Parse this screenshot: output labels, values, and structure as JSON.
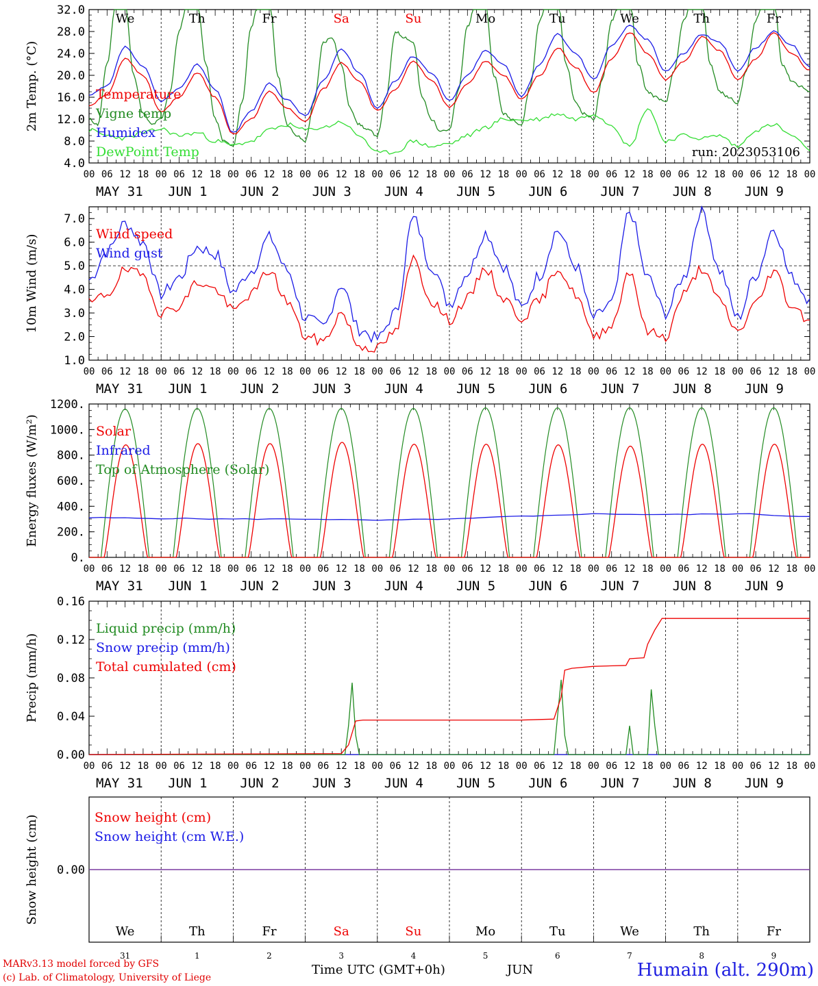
{
  "colors": {
    "red": "#ee0000",
    "green": "#228b22",
    "blue": "#1a1ae6",
    "lime": "#33dd33",
    "purple": "#7a3aa0",
    "weekend": "#ee0000"
  },
  "axis": {
    "hour_ticks": [
      "00",
      "06",
      "12",
      "18"
    ],
    "date_labels": [
      "MAY 31",
      "JUN  1",
      "JUN  2",
      "JUN  3",
      "JUN  4",
      "JUN  5",
      "JUN  6",
      "JUN  7",
      "JUN  8",
      "JUN  9"
    ],
    "weekdays": [
      "We",
      "Th",
      "Fr",
      "Sa",
      "Su",
      "Mo",
      "Tu",
      "We",
      "Th",
      "Fr"
    ],
    "weekend_index": [
      3,
      4
    ],
    "day_numbers": [
      "31",
      "1",
      "2",
      "3",
      "4",
      "5",
      "6",
      "7",
      "8",
      "9"
    ],
    "month_label": "JUN",
    "time_label": "Time UTC (GMT+0h)"
  },
  "footer": {
    "model": "MARv3.13 model forced by GFS",
    "credit": "(c) Lab. of Climatology, University of Liege",
    "station": "Humain (alt. 290m)"
  },
  "chart_data": [
    {
      "type": "line",
      "ylabel": "2m Temp. (°C)",
      "ylim": [
        4,
        32
      ],
      "yticks": [
        "4.0",
        "8.0",
        "12.0",
        "16.0",
        "20.0",
        "24.0",
        "28.0",
        "32.0"
      ],
      "annotation": "run: 2023053106",
      "series": [
        {
          "name": "Temperature",
          "color": "red",
          "x": [
            0,
            0.25,
            0.5,
            0.75,
            1,
            1.25,
            1.5,
            1.75,
            2,
            2.25,
            2.5,
            2.75,
            3,
            3.25,
            3.5,
            3.75,
            4,
            4.25,
            4.5,
            4.75,
            5,
            5.25,
            5.5,
            5.75,
            6,
            6.25,
            6.5,
            6.75,
            7,
            7.25,
            7.5,
            7.75,
            8,
            8.25,
            8.5,
            8.75,
            9,
            9.25,
            9.5,
            9.75,
            10
          ],
          "values": [
            14.5,
            16.5,
            23,
            20,
            13.3,
            16,
            20.5,
            16,
            9.2,
            12,
            17,
            14,
            11.5,
            17.5,
            22.3,
            19,
            13.5,
            17.5,
            22.5,
            19,
            14.2,
            18.5,
            22.5,
            20,
            15.6,
            20,
            25,
            21.5,
            16.8,
            23,
            27.8,
            24,
            19.2,
            22.5,
            27,
            24.5,
            19.2,
            23,
            27.8,
            24,
            21
          ]
        },
        {
          "name": "Vigne temp",
          "color": "green",
          "x": [
            0,
            0.12,
            0.25,
            0.37,
            0.5,
            0.62,
            0.75,
            0.87,
            1,
            1.12,
            1.25,
            1.37,
            1.5,
            1.62,
            1.75,
            1.87,
            2,
            2.12,
            2.25,
            2.37,
            2.5,
            2.62,
            2.75,
            2.87,
            3,
            3.12,
            3.25,
            3.37,
            3.5,
            3.62,
            3.75,
            3.87,
            4,
            4.12,
            4.25,
            4.37,
            4.5,
            4.62,
            4.75,
            4.87,
            5,
            5.12,
            5.25,
            5.37,
            5.5,
            5.62,
            5.75,
            5.87,
            6,
            6.12,
            6.25,
            6.37,
            6.5,
            6.62,
            6.75,
            6.87,
            7,
            7.12,
            7.25,
            7.37,
            7.5,
            7.62,
            7.75,
            7.87,
            8,
            8.12,
            8.25,
            8.37,
            8.5,
            8.62,
            8.75,
            8.87,
            9,
            9.12,
            9.25,
            9.37,
            9.5,
            9.62,
            9.75,
            9.87,
            10
          ],
          "values": [
            12,
            11,
            22,
            33,
            33,
            20,
            13,
            11,
            12,
            17,
            28,
            34,
            34,
            22,
            12,
            8,
            7,
            15,
            29,
            34,
            34,
            20,
            11,
            9,
            8,
            15,
            26,
            27,
            22,
            14,
            11,
            10,
            9,
            16,
            28,
            27,
            26,
            16,
            12,
            10,
            10,
            17,
            29,
            33,
            33,
            20,
            13,
            12,
            11,
            18,
            30,
            34,
            34,
            22,
            15,
            13,
            12,
            19,
            30,
            34,
            34,
            22,
            17,
            16,
            15,
            21,
            30,
            34,
            34,
            22,
            17,
            16,
            15,
            21,
            30,
            34,
            34,
            22,
            19,
            18,
            17
          ]
        },
        {
          "name": "Humidex",
          "color": "blue",
          "x": [
            0,
            0.25,
            0.5,
            0.75,
            1,
            1.25,
            1.5,
            1.75,
            2,
            2.25,
            2.5,
            2.75,
            3,
            3.25,
            3.5,
            3.75,
            4,
            4.25,
            4.5,
            4.75,
            5,
            5.25,
            5.5,
            5.75,
            6,
            6.25,
            6.5,
            6.75,
            7,
            7.25,
            7.5,
            7.75,
            8,
            8.25,
            8.5,
            8.75,
            9,
            9.25,
            9.5,
            9.75,
            10
          ],
          "values": [
            16.3,
            18,
            25.2,
            21.5,
            15.3,
            17.5,
            22,
            17.5,
            9.5,
            13.5,
            18.5,
            15.5,
            12.6,
            19,
            24.8,
            20.5,
            14,
            19,
            23.5,
            20.5,
            15.3,
            20,
            24.5,
            22,
            16.2,
            22,
            27.5,
            24,
            19.3,
            25.5,
            29,
            26.5,
            20.8,
            24,
            27.5,
            26,
            20.8,
            25,
            28,
            25.5,
            21.5
          ]
        },
        {
          "name": "DewPoint Temp",
          "color": "lime",
          "x": [
            0,
            0.25,
            0.5,
            0.75,
            1,
            1.25,
            1.5,
            1.75,
            2,
            2.25,
            2.5,
            2.75,
            3,
            3.25,
            3.5,
            3.75,
            4,
            4.25,
            4.5,
            4.75,
            5,
            5.25,
            5.5,
            5.75,
            6,
            6.25,
            6.5,
            6.75,
            7,
            7.25,
            7.5,
            7.75,
            8,
            8.25,
            8.5,
            8.75,
            9,
            9.25,
            9.5,
            9.75,
            10
          ],
          "values": [
            10,
            9,
            8.5,
            9.5,
            10.2,
            9,
            9.5,
            8,
            7.2,
            8,
            10,
            11,
            10,
            10.5,
            11.5,
            9,
            5.8,
            6,
            8,
            7,
            7.5,
            9,
            10.5,
            12,
            11.8,
            12,
            13,
            12,
            13,
            11,
            7,
            14,
            8,
            9,
            8.5,
            9,
            7,
            10,
            11,
            9,
            6.2
          ]
        }
      ]
    },
    {
      "type": "line",
      "ylabel": "10m Wind (m/s)",
      "ylim": [
        1,
        7.5
      ],
      "yticks": [
        "1.0",
        "2.0",
        "3.0",
        "4.0",
        "5.0",
        "6.0",
        "7.0"
      ],
      "reference_line": 5,
      "series": [
        {
          "name": "Wind speed",
          "color": "red",
          "x": [
            0,
            0.25,
            0.5,
            0.75,
            1,
            1.25,
            1.5,
            1.75,
            2,
            2.25,
            2.5,
            2.75,
            3,
            3.25,
            3.5,
            3.75,
            4,
            4.25,
            4.5,
            4.75,
            5,
            5.25,
            5.5,
            5.75,
            6,
            6.25,
            6.5,
            6.75,
            7,
            7.25,
            7.5,
            7.75,
            8,
            8.25,
            8.5,
            8.75,
            9,
            9.25,
            9.5,
            9.75,
            10
          ],
          "values": [
            3.4,
            3.8,
            4.8,
            4.6,
            3.0,
            3.3,
            4.3,
            4.0,
            3.1,
            3.8,
            4.8,
            3.5,
            2.0,
            1.8,
            3.0,
            1.6,
            1.5,
            2.2,
            5.3,
            3.5,
            2.7,
            3.6,
            4.9,
            3.6,
            2.8,
            3.5,
            4.9,
            3.8,
            2.0,
            2.5,
            4.8,
            2.2,
            2.0,
            3.8,
            4.9,
            3.5,
            2.2,
            3.4,
            4.8,
            3.3,
            2.7
          ]
        },
        {
          "name": "Wind gust",
          "color": "blue",
          "x": [
            0,
            0.25,
            0.5,
            0.75,
            1,
            1.25,
            1.5,
            1.75,
            2,
            2.25,
            2.5,
            2.75,
            3,
            3.25,
            3.5,
            3.75,
            4,
            4.25,
            4.5,
            4.75,
            5,
            5.25,
            5.5,
            5.75,
            6,
            6.25,
            6.5,
            6.75,
            7,
            7.25,
            7.5,
            7.75,
            8,
            8.25,
            8.5,
            8.75,
            9,
            9.25,
            9.5,
            9.75,
            10
          ],
          "values": [
            4.4,
            5.6,
            6.8,
            6.0,
            3.8,
            4.5,
            5.8,
            5.5,
            3.9,
            4.8,
            6.2,
            4.8,
            2.8,
            2.4,
            4.2,
            2.3,
            1.9,
            3.0,
            7.0,
            5.0,
            3.4,
            4.7,
            6.4,
            5.0,
            3.2,
            4.6,
            6.5,
            5.0,
            2.8,
            3.4,
            7.3,
            4.5,
            3.0,
            4.5,
            7.4,
            4.8,
            2.8,
            4.6,
            6.6,
            4.5,
            3.6
          ]
        }
      ]
    },
    {
      "type": "line",
      "ylabel": "Energy fluxes (W/m²)",
      "ylim": [
        0,
        1200
      ],
      "yticks": [
        "0.",
        "200.",
        "400.",
        "600.",
        "800.",
        "1000.",
        "1200."
      ],
      "series": [
        {
          "name": "Solar",
          "color": "red",
          "peaks": [
            880,
            890,
            890,
            900,
            885,
            885,
            880,
            870,
            885,
            885
          ]
        },
        {
          "name": "Infrared",
          "color": "blue",
          "x": [
            0,
            1,
            2,
            3,
            4,
            5,
            6,
            7,
            8,
            9,
            10
          ],
          "values": [
            310,
            305,
            300,
            300,
            290,
            300,
            320,
            340,
            335,
            340,
            320
          ]
        },
        {
          "name": "Top of Atmosphere (Solar)",
          "color": "green",
          "peaks": [
            1160,
            1165,
            1165,
            1165,
            1165,
            1170,
            1170,
            1170,
            1170,
            1170
          ]
        }
      ]
    },
    {
      "type": "line",
      "ylabel": "Precip (mm/h)",
      "ylim": [
        0,
        0.16
      ],
      "yticks": [
        "0.00",
        "0.04",
        "0.08",
        "0.12",
        "0.16"
      ],
      "series": [
        {
          "name": "Liquid precip (mm/h)",
          "color": "green",
          "x": [
            0,
            3.55,
            3.6,
            3.65,
            3.7,
            3.75,
            3.8,
            6.45,
            6.5,
            6.55,
            6.6,
            6.65,
            6.7,
            7.45,
            7.5,
            7.55,
            7.75,
            7.8,
            7.85,
            7.9,
            10
          ],
          "values": [
            0,
            0,
            0.03,
            0.075,
            0.02,
            0,
            0,
            0,
            0.04,
            0.078,
            0.02,
            0,
            0,
            0,
            0.03,
            0,
            0,
            0.068,
            0.03,
            0,
            0
          ]
        },
        {
          "name": "Snow precip (mm/h)",
          "color": "blue",
          "x": [
            0,
            10
          ],
          "values": [
            0,
            0
          ]
        },
        {
          "name": "Total cumulated (cm)",
          "color": "red",
          "x": [
            0,
            3.5,
            3.6,
            3.7,
            3.8,
            5.0,
            6.0,
            6.45,
            6.55,
            6.6,
            6.7,
            7.0,
            7.45,
            7.5,
            7.7,
            7.75,
            7.85,
            7.95,
            10
          ],
          "values": [
            0,
            0.001,
            0.01,
            0.035,
            0.036,
            0.036,
            0.036,
            0.037,
            0.06,
            0.088,
            0.09,
            0.092,
            0.093,
            0.1,
            0.101,
            0.115,
            0.13,
            0.142,
            0.142
          ]
        }
      ]
    },
    {
      "type": "line",
      "ylabel": "Snow height (cm)",
      "ylim": [
        -1,
        1
      ],
      "yticks": [
        "0.00"
      ],
      "series": [
        {
          "name": "Snow height (cm)",
          "color": "red",
          "x": [
            0,
            10
          ],
          "values": [
            0,
            0
          ]
        },
        {
          "name": "Snow height (cm W.E.)",
          "color": "blue",
          "x": [
            0,
            10
          ],
          "values": [
            0,
            0
          ]
        }
      ]
    }
  ]
}
